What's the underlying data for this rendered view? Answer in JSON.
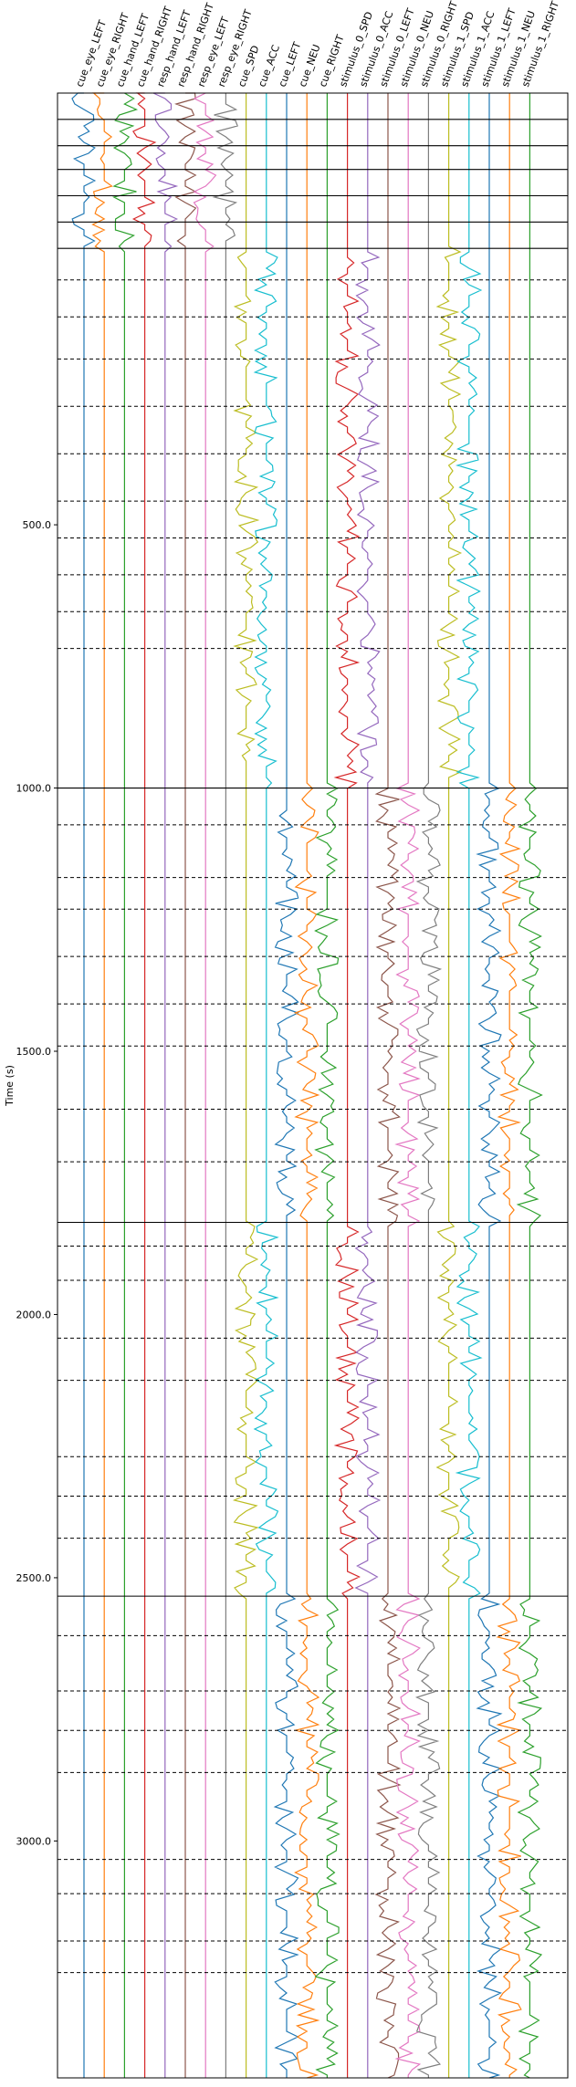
{
  "chart_data": {
    "type": "line",
    "title": "",
    "xlabel": "",
    "ylabel": "Time (s)",
    "y_axis_inverted": true,
    "ylim": [
      -320,
      3450
    ],
    "yticks": [
      500,
      1000,
      1500,
      2000,
      2500,
      3000
    ],
    "ytick_labels": [
      "500.0",
      "1000.0",
      "1500.0",
      "2000.0",
      "2500.0",
      "3000.0"
    ],
    "grid": false,
    "legend": "none",
    "channels": [
      {
        "name": "cue_eye_LEFT",
        "color": "#1f77b4"
      },
      {
        "name": "cue_eye_RIGHT",
        "color": "#ff7f0e"
      },
      {
        "name": "cue_hand_LEFT",
        "color": "#2ca02c"
      },
      {
        "name": "cue_hand_RIGHT",
        "color": "#d62728"
      },
      {
        "name": "resp_hand_LEFT",
        "color": "#9467bd"
      },
      {
        "name": "resp_hand_RIGHT",
        "color": "#8c564b"
      },
      {
        "name": "resp_eye_LEFT",
        "color": "#e377c2"
      },
      {
        "name": "resp_eye_RIGHT",
        "color": "#7f7f7f"
      },
      {
        "name": "cue_SPD",
        "color": "#bcbd22"
      },
      {
        "name": "cue_ACC",
        "color": "#17becf"
      },
      {
        "name": "cue_LEFT",
        "color": "#1f77b4"
      },
      {
        "name": "cue_NEU",
        "color": "#ff7f0e"
      },
      {
        "name": "cue_RIGHT",
        "color": "#2ca02c"
      },
      {
        "name": "stimulus_0_SPD",
        "color": "#d62728"
      },
      {
        "name": "stimulus_0_ACC",
        "color": "#9467bd"
      },
      {
        "name": "stimulus_0_LEFT",
        "color": "#8c564b"
      },
      {
        "name": "stimulus_0_NEU",
        "color": "#e377c2"
      },
      {
        "name": "stimulus_0_RIGHT",
        "color": "#7f7f7f"
      },
      {
        "name": "stimulus_1_SPD",
        "color": "#bcbd22"
      },
      {
        "name": "stimulus_1_ACC",
        "color": "#17becf"
      },
      {
        "name": "stimulus_1_LEFT",
        "color": "#1f77b4"
      },
      {
        "name": "stimulus_1_NEU",
        "color": "#ff7f0e"
      },
      {
        "name": "stimulus_1_RIGHT",
        "color": "#2ca02c"
      }
    ],
    "block_boundaries": [
      -320,
      -270,
      -220,
      -175,
      -125,
      -75,
      -25,
      1000,
      1825,
      2535,
      3450
    ],
    "trial_boundaries": [
      [
        35,
        105,
        185,
        275,
        365,
        455,
        525,
        595,
        665,
        735
      ],
      [
        1070,
        1170,
        1230,
        1320,
        1410,
        1490,
        1610,
        1710
      ],
      [
        1870,
        1935,
        2045,
        2125,
        2270,
        2345,
        2425
      ],
      [
        2610,
        2715,
        2790,
        2870,
        3035,
        3100,
        3190,
        3250
      ]
    ],
    "blocks": [
      {
        "range": [
          -320,
          -25
        ],
        "active": [
          "cue_eye_LEFT",
          "cue_eye_RIGHT",
          "cue_hand_LEFT",
          "cue_hand_RIGHT",
          "resp_hand_LEFT",
          "resp_hand_RIGHT",
          "resp_eye_LEFT",
          "resp_eye_RIGHT"
        ]
      },
      {
        "range": [
          -25,
          1000
        ],
        "active": [
          "cue_SPD",
          "cue_ACC",
          "stimulus_0_SPD",
          "stimulus_0_ACC",
          "stimulus_1_SPD",
          "stimulus_1_ACC"
        ]
      },
      {
        "range": [
          1000,
          1825
        ],
        "active": [
          "cue_LEFT",
          "cue_NEU",
          "cue_RIGHT",
          "stimulus_0_LEFT",
          "stimulus_0_NEU",
          "stimulus_0_RIGHT",
          "stimulus_1_LEFT",
          "stimulus_1_NEU",
          "stimulus_1_RIGHT"
        ]
      },
      {
        "range": [
          1825,
          2535
        ],
        "active": [
          "cue_SPD",
          "cue_ACC",
          "stimulus_0_SPD",
          "stimulus_0_ACC",
          "stimulus_1_SPD",
          "stimulus_1_ACC"
        ]
      },
      {
        "range": [
          2535,
          3450
        ],
        "active": [
          "cue_LEFT",
          "cue_NEU",
          "cue_RIGHT",
          "stimulus_0_LEFT",
          "stimulus_0_NEU",
          "stimulus_0_RIGHT",
          "stimulus_1_LEFT",
          "stimulus_1_NEU",
          "stimulus_1_RIGHT"
        ]
      }
    ]
  }
}
